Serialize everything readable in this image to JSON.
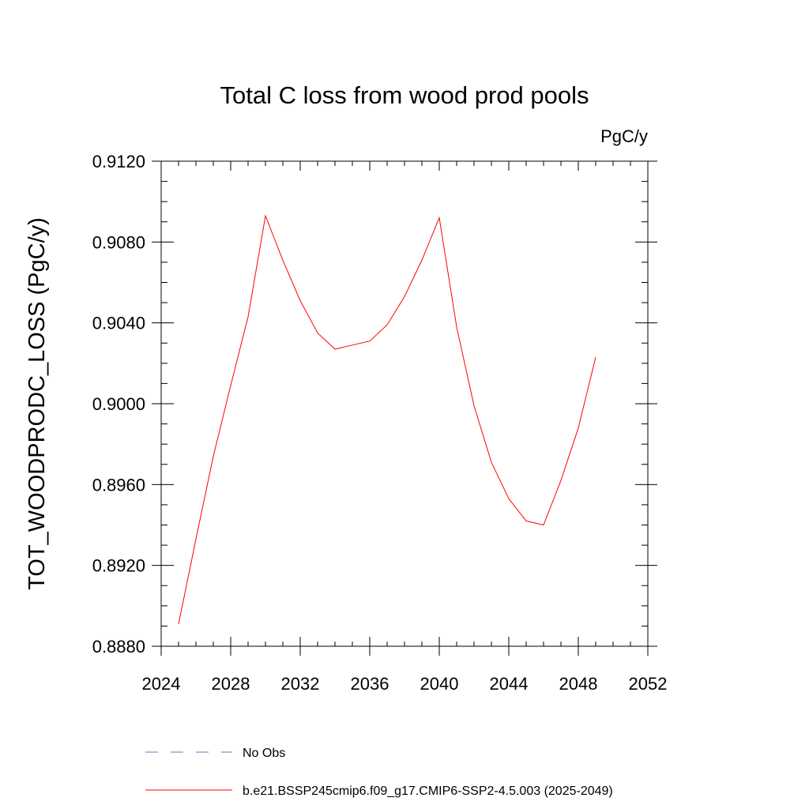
{
  "chart_data": {
    "type": "line",
    "title": "Total C loss from wood prod pools",
    "units": "PgC/y",
    "ylabel": "TOT_WOODPRODC_LOSS  (PgC/y)",
    "xlabel": "",
    "xlim": [
      2024,
      2052
    ],
    "ylim": [
      0.888,
      0.912
    ],
    "x_ticks": [
      2024,
      2028,
      2032,
      2036,
      2040,
      2044,
      2048,
      2052
    ],
    "x_tick_labels": [
      "2024",
      "2028",
      "2032",
      "2036",
      "2040",
      "2044",
      "2048",
      "2052"
    ],
    "y_ticks": [
      0.888,
      0.892,
      0.896,
      0.9,
      0.904,
      0.908,
      0.912
    ],
    "y_tick_labels": [
      "0.8880",
      "0.8920",
      "0.8960",
      "0.9000",
      "0.9040",
      "0.9080",
      "0.9120"
    ],
    "grid": false,
    "legend_position": "bottom",
    "series": [
      {
        "name": "No Obs",
        "color": "#7b68c8",
        "dash": "dashed",
        "x": [],
        "y": []
      },
      {
        "name": "b.e21.BSSP245cmip6.f09_g17.CMIP6-SSP2-4.5.003 (2025-2049)",
        "color": "#ff0000",
        "dash": "solid",
        "x": [
          2025,
          2026,
          2027,
          2028,
          2029,
          2030,
          2031,
          2032,
          2033,
          2034,
          2035,
          2036,
          2037,
          2038,
          2039,
          2040,
          2041,
          2042,
          2043,
          2044,
          2045,
          2046,
          2047,
          2048,
          2049
        ],
        "y": [
          0.8891,
          0.8933,
          0.8974,
          0.9009,
          0.9043,
          0.9093,
          0.9071,
          0.9051,
          0.9035,
          0.9027,
          0.9029,
          0.9031,
          0.9039,
          0.9053,
          0.9071,
          0.9092,
          0.9038,
          0.8999,
          0.8971,
          0.8953,
          0.8942,
          0.894,
          0.8962,
          0.8988,
          0.9023
        ]
      }
    ]
  }
}
